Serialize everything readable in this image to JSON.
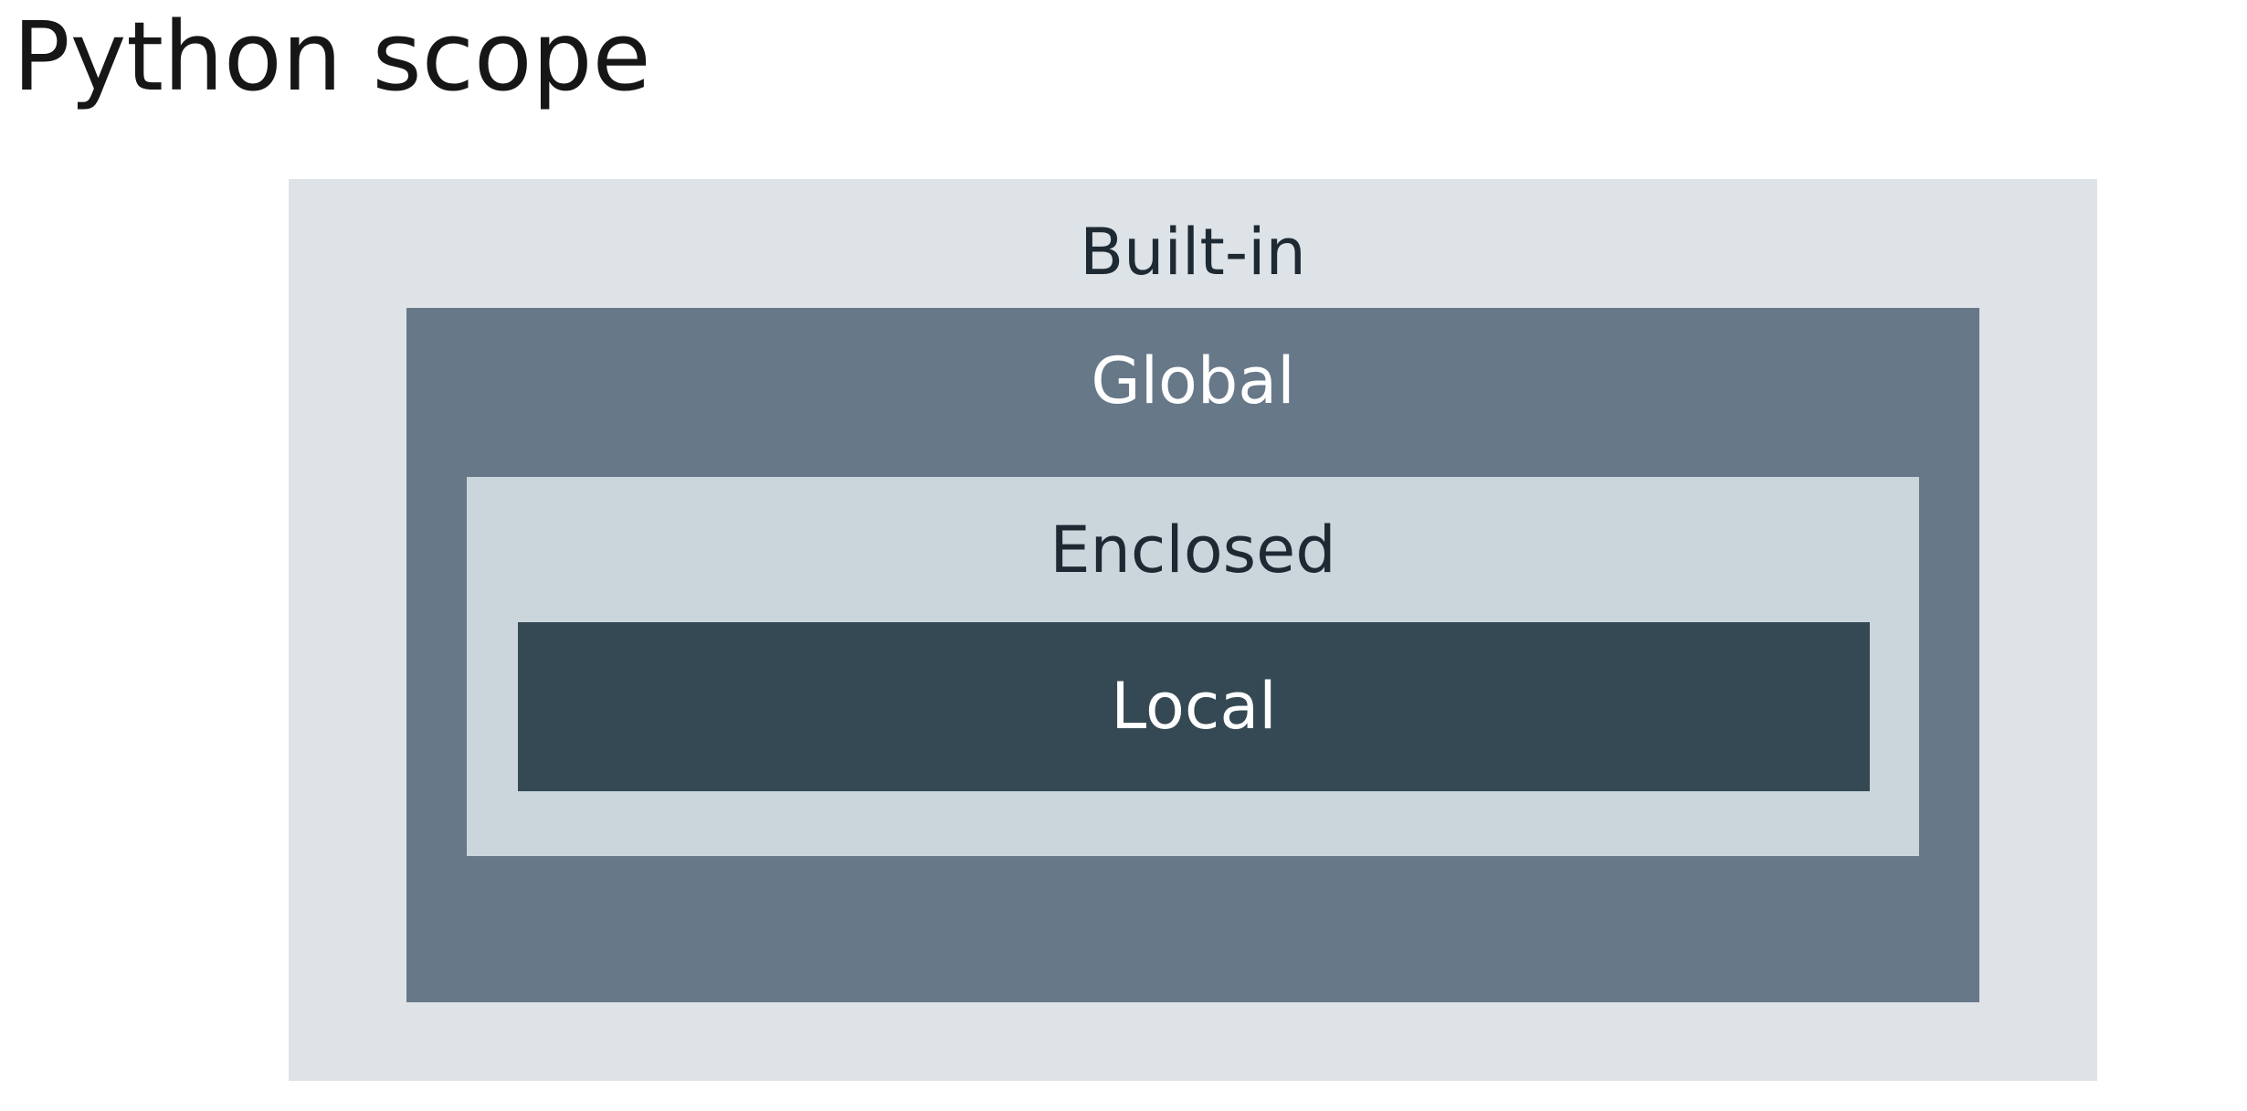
{
  "title": "Python scope",
  "scopes": {
    "builtin": {
      "label": "Built-in",
      "bg": "#dde3e7",
      "text_color": "#1e2a33"
    },
    "global": {
      "label": "Global",
      "bg": "#677889",
      "text_color": "#ffffff"
    },
    "enclosed": {
      "label": "Enclosed",
      "bg": "#cad5dc",
      "text_color": "#1e2a33"
    },
    "local": {
      "label": "Local",
      "bg": "#344953",
      "text_color": "#ffffff"
    }
  }
}
